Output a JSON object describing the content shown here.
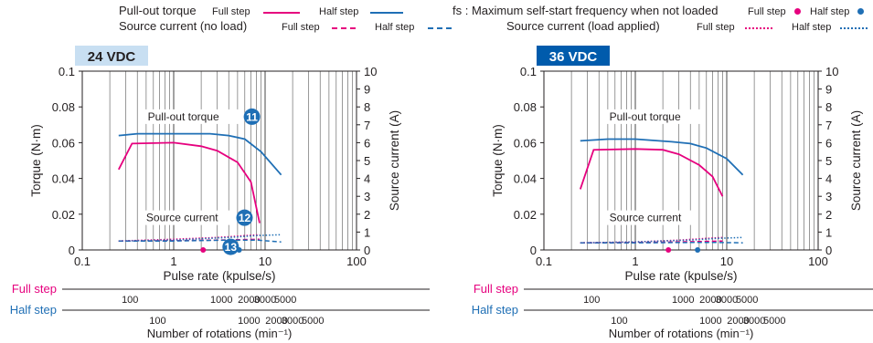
{
  "legend": {
    "pullout_label": "Pull-out torque",
    "source_noload_label": "Source current (no load)",
    "fs_label": "fs : Maximum self-start frequency when not loaded",
    "source_load_label": "Source current (load applied)",
    "full_step": "Full step",
    "half_step": "Half step"
  },
  "colors": {
    "full": "#e6007e",
    "half": "#1f6fb5",
    "title_dark": "#005bac",
    "title_light": "#c8dff2",
    "grid": "#555555"
  },
  "chart_data": [
    {
      "type": "line",
      "title": "24 VDC",
      "title_style": "light",
      "xlabel": "Pulse rate (kpulse/s)",
      "ylabel_left": "Torque (N·m)",
      "ylabel_right": "Source current (A)",
      "x_scale": "log",
      "xlim": [
        0.1,
        100
      ],
      "x_ticks": [
        "0.1",
        "1",
        "10",
        "100"
      ],
      "ylim_left": [
        0,
        0.1
      ],
      "y_ticks_left": [
        "0",
        "0.02",
        "0.04",
        "0.06",
        "0.08",
        "0.1"
      ],
      "ylim_right": [
        0,
        10
      ],
      "y_ticks_right": [
        "0",
        "1",
        "2",
        "3",
        "4",
        "5",
        "6",
        "7",
        "8",
        "9",
        "10"
      ],
      "grid": true,
      "annotations": [
        {
          "text": "Pull-out torque",
          "badge": "11",
          "x": 0.52,
          "y": 0.0725
        },
        {
          "text": "Source current",
          "badge": "12",
          "x": 0.5,
          "y": 0.016
        },
        {
          "text": "",
          "badge": "13",
          "x": 4.2,
          "y": -0.0003
        }
      ],
      "fs_points": [
        {
          "step": "Full step",
          "x": 2.1,
          "y": 0
        },
        {
          "step": "Half step",
          "x": 5.2,
          "y": 0
        }
      ],
      "series": [
        {
          "name": "Pull-out torque (Full step)",
          "style": "solid",
          "color": "full",
          "x": [
            0.25,
            0.35,
            1,
            2,
            3,
            5,
            7,
            8.7
          ],
          "y": [
            0.045,
            0.0595,
            0.06,
            0.058,
            0.0555,
            0.049,
            0.038,
            0.015
          ]
        },
        {
          "name": "Pull-out torque (Half step)",
          "style": "solid",
          "color": "half",
          "x": [
            0.25,
            0.4,
            1,
            2.5,
            4,
            6,
            9,
            15
          ],
          "y": [
            0.064,
            0.065,
            0.065,
            0.065,
            0.064,
            0.062,
            0.055,
            0.042
          ]
        },
        {
          "name": "Source current no load (Full step)",
          "style": "dash",
          "color": "full",
          "x": [
            0.25,
            1,
            3,
            6,
            8.7
          ],
          "y": [
            0.5,
            0.52,
            0.55,
            0.58,
            0.6
          ]
        },
        {
          "name": "Source current no load (Half step)",
          "style": "dash",
          "color": "half",
          "x": [
            0.25,
            1,
            4,
            8,
            15
          ],
          "y": [
            0.5,
            0.5,
            0.55,
            0.55,
            0.45
          ]
        },
        {
          "name": "Source current load applied (Full step)",
          "style": "dot",
          "color": "full",
          "x": [
            0.25,
            1,
            3,
            6,
            8.7
          ],
          "y": [
            0.5,
            0.6,
            0.7,
            0.8,
            0.85
          ]
        },
        {
          "name": "Source current load applied (Half step)",
          "style": "dot",
          "color": "half",
          "x": [
            0.25,
            1,
            4,
            8,
            15
          ],
          "y": [
            0.5,
            0.55,
            0.7,
            0.8,
            0.85
          ]
        }
      ],
      "rotation_axes": {
        "xlabel": "Number of rotations (min⁻¹)",
        "full_label": "Full step",
        "half_label": "Half step",
        "full_ticks": [
          {
            "label": "100",
            "pps": 0.333
          },
          {
            "label": "1000",
            "pps": 3.333
          },
          {
            "label": "2000",
            "pps": 6.667
          },
          {
            "label": "3000",
            "pps": 10
          },
          {
            "label": "5000",
            "pps": 16.667
          }
        ],
        "half_ticks": [
          {
            "label": "100",
            "pps": 0.667
          },
          {
            "label": "1000",
            "pps": 6.667
          },
          {
            "label": "2000",
            "pps": 13.333
          },
          {
            "label": "3000",
            "pps": 20
          },
          {
            "label": "5000",
            "pps": 33.333
          }
        ]
      }
    },
    {
      "type": "line",
      "title": "36 VDC",
      "title_style": "dark",
      "xlabel": "Pulse rate (kpulse/s)",
      "ylabel_left": "Torque (N·m)",
      "ylabel_right": "Source current (A)",
      "x_scale": "log",
      "xlim": [
        0.1,
        100
      ],
      "x_ticks": [
        "0.1",
        "1",
        "10",
        "100"
      ],
      "ylim_left": [
        0,
        0.1
      ],
      "y_ticks_left": [
        "0",
        "0.02",
        "0.04",
        "0.06",
        "0.08",
        "0.1"
      ],
      "ylim_right": [
        0,
        10
      ],
      "y_ticks_right": [
        "0",
        "1",
        "2",
        "3",
        "4",
        "5",
        "6",
        "7",
        "8",
        "9",
        "10"
      ],
      "grid": true,
      "annotations": [
        {
          "text": "Pull-out torque",
          "badge": "",
          "x": 0.52,
          "y": 0.0725
        },
        {
          "text": "Source current",
          "badge": "",
          "x": 0.52,
          "y": 0.016
        }
      ],
      "fs_points": [
        {
          "step": "Full step",
          "x": 2.3,
          "y": 0
        },
        {
          "step": "Half step",
          "x": 4.8,
          "y": 0
        }
      ],
      "series": [
        {
          "name": "Pull-out torque (Full step)",
          "style": "solid",
          "color": "full",
          "x": [
            0.25,
            0.35,
            1,
            2,
            3,
            5,
            7,
            9
          ],
          "y": [
            0.034,
            0.056,
            0.0565,
            0.056,
            0.0535,
            0.0475,
            0.041,
            0.03
          ]
        },
        {
          "name": "Pull-out torque (Half step)",
          "style": "solid",
          "color": "half",
          "x": [
            0.25,
            0.5,
            1,
            2.5,
            4,
            6,
            10,
            15
          ],
          "y": [
            0.061,
            0.062,
            0.062,
            0.0605,
            0.0595,
            0.057,
            0.051,
            0.042
          ]
        },
        {
          "name": "Source current no load (Full step)",
          "style": "dash",
          "color": "full",
          "x": [
            0.25,
            1,
            3,
            6,
            9
          ],
          "y": [
            0.4,
            0.42,
            0.45,
            0.48,
            0.5
          ]
        },
        {
          "name": "Source current no load (Half step)",
          "style": "dash",
          "color": "half",
          "x": [
            0.25,
            1,
            4,
            8,
            15
          ],
          "y": [
            0.4,
            0.4,
            0.42,
            0.42,
            0.4
          ]
        },
        {
          "name": "Source current load applied (Full step)",
          "style": "dot",
          "color": "full",
          "x": [
            0.25,
            1,
            3,
            6,
            9
          ],
          "y": [
            0.4,
            0.45,
            0.55,
            0.65,
            0.7
          ]
        },
        {
          "name": "Source current load applied (Half step)",
          "style": "dot",
          "color": "half",
          "x": [
            0.25,
            1,
            4,
            8,
            15
          ],
          "y": [
            0.4,
            0.45,
            0.55,
            0.65,
            0.7
          ]
        }
      ],
      "rotation_axes": {
        "xlabel": "Number of rotations (min⁻¹)",
        "full_label": "Full step",
        "half_label": "Half step",
        "full_ticks": [
          {
            "label": "100",
            "pps": 0.333
          },
          {
            "label": "1000",
            "pps": 3.333
          },
          {
            "label": "2000",
            "pps": 6.667
          },
          {
            "label": "3000",
            "pps": 10
          },
          {
            "label": "5000",
            "pps": 16.667
          }
        ],
        "half_ticks": [
          {
            "label": "100",
            "pps": 0.667
          },
          {
            "label": "1000",
            "pps": 6.667
          },
          {
            "label": "2000",
            "pps": 13.333
          },
          {
            "label": "3000",
            "pps": 20
          },
          {
            "label": "5000",
            "pps": 33.333
          }
        ]
      }
    }
  ]
}
